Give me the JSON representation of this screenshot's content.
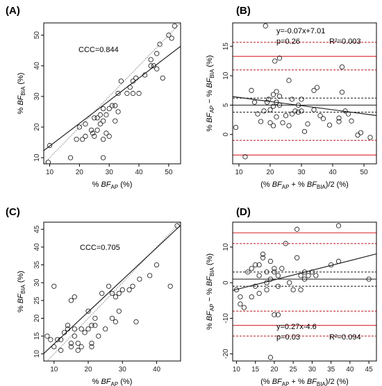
{
  "chart_data": [
    {
      "panel": "(A)",
      "type": "scatter",
      "xlabel": {
        "prefix": "% ",
        "var": "BF",
        "sub": "AP",
        "suffix": " (%)"
      },
      "ylabel": {
        "prefix": "% ",
        "var": "BF",
        "sub": "BIA",
        "suffix": " (%)"
      },
      "xlim": [
        8,
        54
      ],
      "ylim": [
        8,
        54
      ],
      "xticks": [
        10,
        20,
        30,
        40,
        50
      ],
      "yticks": [
        10,
        20,
        30,
        40,
        50
      ],
      "annotations": [
        "CCC=0.844"
      ],
      "identity_line": true,
      "regression": {
        "slope": 0.74,
        "intercept": 6.4
      },
      "points": [
        [
          9.5,
          8.5
        ],
        [
          10,
          14
        ],
        [
          17,
          10
        ],
        [
          19,
          16
        ],
        [
          20,
          20
        ],
        [
          21,
          16
        ],
        [
          22,
          17
        ],
        [
          22,
          21
        ],
        [
          24,
          19
        ],
        [
          24.5,
          18
        ],
        [
          25,
          17
        ],
        [
          25,
          23
        ],
        [
          26,
          19
        ],
        [
          26,
          23
        ],
        [
          27,
          21
        ],
        [
          27,
          24
        ],
        [
          28,
          10
        ],
        [
          28,
          16
        ],
        [
          28,
          22
        ],
        [
          28,
          26
        ],
        [
          29,
          18
        ],
        [
          29,
          24
        ],
        [
          30,
          17
        ],
        [
          30,
          26
        ],
        [
          31,
          27
        ],
        [
          32,
          27
        ],
        [
          32,
          22
        ],
        [
          33,
          31
        ],
        [
          33,
          25
        ],
        [
          34,
          35
        ],
        [
          36,
          31
        ],
        [
          37,
          33
        ],
        [
          38,
          31
        ],
        [
          38,
          35
        ],
        [
          39,
          36
        ],
        [
          40,
          31
        ],
        [
          42,
          37
        ],
        [
          44,
          40
        ],
        [
          44,
          42
        ],
        [
          45,
          40
        ],
        [
          46,
          39
        ],
        [
          46,
          44
        ],
        [
          47,
          47
        ],
        [
          48,
          36
        ],
        [
          50,
          50
        ],
        [
          51,
          49
        ],
        [
          52,
          53
        ]
      ]
    },
    {
      "panel": "(B)",
      "type": "scatter",
      "xlabel": {
        "prefix": "(% ",
        "var": "BF",
        "sub": "AP",
        "mid": " + % ",
        "var2": "BF",
        "sub2": "BIA",
        "suffix": ")/2 (%)"
      },
      "ylabel": {
        "prefix": "% ",
        "var": "BF",
        "sub": "AP",
        "mid": " − % ",
        "var2": "BF",
        "sub2": "BIA",
        "suffix": " (%)"
      },
      "xlim": [
        8,
        54
      ],
      "ylim": [
        -5,
        19
      ],
      "xticks": [
        10,
        20,
        30,
        40,
        50
      ],
      "yticks": [
        0,
        5,
        10,
        15
      ],
      "annotations": [
        "y=-0.07x+7.01",
        "p=0.26",
        "R²=0.003"
      ],
      "mean_line": 5.0,
      "inner_dashed": [
        3.8,
        6.2
      ],
      "red_solid": [
        -3.5,
        13.3
      ],
      "red_dashed": [
        -1.0,
        11.0,
        15.7
      ],
      "regression": {
        "slope": -0.07,
        "intercept": 7.01
      },
      "points": [
        [
          9,
          1.2
        ],
        [
          12,
          -3.8
        ],
        [
          14,
          7.5
        ],
        [
          15,
          5.5
        ],
        [
          16,
          3.5
        ],
        [
          17,
          2.2
        ],
        [
          18,
          4.0
        ],
        [
          18.5,
          18.5
        ],
        [
          19,
          5.5
        ],
        [
          19.5,
          6.0
        ],
        [
          20,
          4.2
        ],
        [
          20,
          2.0
        ],
        [
          21,
          4.8
        ],
        [
          21,
          6.8
        ],
        [
          21,
          1.5
        ],
        [
          21.5,
          12.5
        ],
        [
          22,
          7.3
        ],
        [
          22,
          3.0
        ],
        [
          22,
          5.5
        ],
        [
          23,
          5.0
        ],
        [
          23,
          6.5
        ],
        [
          23,
          13.0
        ],
        [
          24,
          2.0
        ],
        [
          25,
          3.2
        ],
        [
          26,
          1.5
        ],
        [
          26,
          9.2
        ],
        [
          27,
          6.0
        ],
        [
          27,
          3.5
        ],
        [
          28,
          4.0
        ],
        [
          29,
          5.0
        ],
        [
          29,
          3.8
        ],
        [
          30,
          6.0
        ],
        [
          30,
          4.0
        ],
        [
          31,
          0.5
        ],
        [
          32,
          1.8
        ],
        [
          34,
          7.5
        ],
        [
          34,
          4.2
        ],
        [
          35,
          8.0
        ],
        [
          36,
          3.2
        ],
        [
          37,
          2.7
        ],
        [
          39,
          1.6
        ],
        [
          42,
          2.8
        ],
        [
          42,
          2.2
        ],
        [
          43,
          11.5
        ],
        [
          43,
          7.2
        ],
        [
          44,
          4.0
        ],
        [
          45,
          3.5
        ],
        [
          46,
          2.3
        ],
        [
          48,
          -0.1
        ],
        [
          49,
          0.3
        ],
        [
          52,
          -0.5
        ]
      ]
    },
    {
      "panel": "(C)",
      "type": "scatter",
      "xlabel": {
        "prefix": "% ",
        "var": "BF",
        "sub": "AP",
        "suffix": " (%)"
      },
      "ylabel": {
        "prefix": "% ",
        "var": "BF",
        "sub": "BIA",
        "suffix": " (%)"
      },
      "xlim": [
        7,
        47
      ],
      "ylim": [
        8,
        47
      ],
      "xticks": [
        10,
        20,
        30,
        40
      ],
      "yticks": [
        10,
        15,
        20,
        25,
        30,
        35,
        40,
        45
      ],
      "annotations": [
        "CCC=0.705"
      ],
      "identity_line": true,
      "regression": {
        "slope": 0.9,
        "intercept": 3.8
      },
      "points": [
        [
          8,
          15
        ],
        [
          9,
          14
        ],
        [
          10,
          12
        ],
        [
          10,
          29
        ],
        [
          11,
          14
        ],
        [
          12,
          11
        ],
        [
          12,
          14
        ],
        [
          13,
          16
        ],
        [
          14,
          18
        ],
        [
          14,
          17
        ],
        [
          15,
          25
        ],
        [
          15,
          12
        ],
        [
          15,
          13
        ],
        [
          16,
          15
        ],
        [
          16,
          17
        ],
        [
          16,
          26
        ],
        [
          17,
          11
        ],
        [
          17,
          13
        ],
        [
          18,
          12
        ],
        [
          18,
          17
        ],
        [
          19,
          16
        ],
        [
          20,
          17
        ],
        [
          20,
          22
        ],
        [
          21,
          12
        ],
        [
          21,
          13
        ],
        [
          21,
          18
        ],
        [
          22,
          18
        ],
        [
          22,
          20
        ],
        [
          23,
          15
        ],
        [
          24,
          27
        ],
        [
          25,
          17
        ],
        [
          26,
          29
        ],
        [
          27,
          20
        ],
        [
          27,
          27
        ],
        [
          28,
          26
        ],
        [
          28,
          19
        ],
        [
          29,
          22
        ],
        [
          29,
          27
        ],
        [
          30,
          28
        ],
        [
          32,
          28
        ],
        [
          33,
          29
        ],
        [
          34,
          19
        ],
        [
          35,
          31
        ],
        [
          38,
          32
        ],
        [
          40,
          35
        ],
        [
          44,
          29
        ],
        [
          46,
          46
        ]
      ]
    },
    {
      "panel": "(D)",
      "type": "scatter",
      "xlabel": {
        "prefix": "(% ",
        "var": "BF",
        "sub": "AP",
        "mid": " + % ",
        "var2": "BF",
        "sub2": "BIA",
        "suffix": ")/2 (%)"
      },
      "ylabel": {
        "prefix": "% ",
        "var": "BF",
        "sub": "AP",
        "mid": " − % ",
        "var2": "BF",
        "sub2": "BIA",
        "suffix": " (%)"
      },
      "xlim": [
        9,
        47
      ],
      "ylim": [
        -22,
        17
      ],
      "xticks": [
        10,
        15,
        20,
        25,
        30,
        35,
        40,
        45
      ],
      "yticks": [
        -20,
        -10,
        0,
        10
      ],
      "annotations": [
        "y=0.27x-4.6",
        "p=0.03",
        "R²=0.094"
      ],
      "mean_line": 1.0,
      "inner_dashed": [
        -1.0,
        3.0
      ],
      "red_solid": [
        -12.0,
        14.0
      ],
      "red_dashed": [
        -15.0,
        -8.0,
        11.0
      ],
      "regression": {
        "slope": 0.27,
        "intercept": -4.6
      },
      "points": [
        [
          10,
          -2
        ],
        [
          11,
          -4
        ],
        [
          11,
          -6
        ],
        [
          12,
          -7
        ],
        [
          13,
          3
        ],
        [
          14,
          4
        ],
        [
          14,
          -4
        ],
        [
          15,
          5
        ],
        [
          15,
          -1
        ],
        [
          16,
          2
        ],
        [
          16,
          5
        ],
        [
          16,
          -3
        ],
        [
          17,
          8
        ],
        [
          17,
          7
        ],
        [
          18,
          3
        ],
        [
          18,
          0
        ],
        [
          18,
          -2
        ],
        [
          19,
          -21
        ],
        [
          19,
          6
        ],
        [
          19,
          1
        ],
        [
          20,
          3
        ],
        [
          20,
          4
        ],
        [
          20,
          -9
        ],
        [
          21,
          -1
        ],
        [
          21,
          2
        ],
        [
          21,
          -9
        ],
        [
          22,
          4
        ],
        [
          23,
          11
        ],
        [
          24,
          0
        ],
        [
          25,
          -2
        ],
        [
          26,
          7
        ],
        [
          26,
          15
        ],
        [
          27,
          2
        ],
        [
          27,
          -2
        ],
        [
          28,
          1
        ],
        [
          28,
          3
        ],
        [
          29,
          2
        ],
        [
          30,
          3
        ],
        [
          31,
          2
        ],
        [
          35,
          5
        ],
        [
          37,
          16
        ],
        [
          37,
          6
        ],
        [
          45,
          1
        ]
      ]
    }
  ]
}
